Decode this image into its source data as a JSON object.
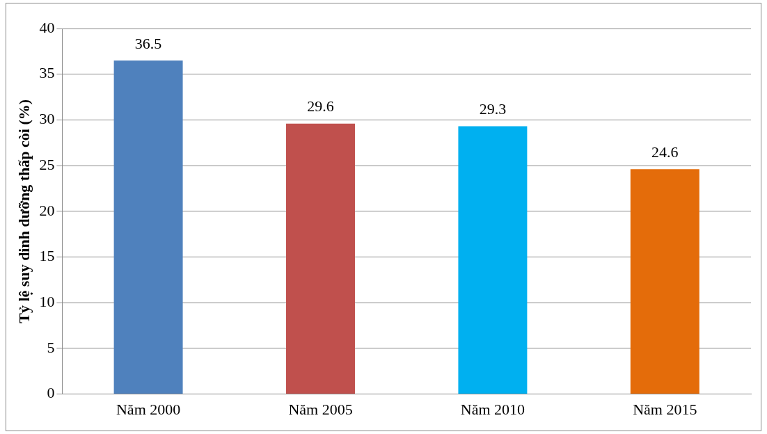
{
  "chart_data": {
    "type": "bar",
    "ylabel": "Tỷ lệ suy dinh dưỡng thấp còi (%)",
    "categories": [
      "Năm 2000",
      "Năm 2005",
      "Năm 2010",
      "Năm 2015"
    ],
    "values": [
      36.5,
      29.6,
      29.3,
      24.6
    ],
    "colors": [
      "#4f81bd",
      "#c0504d",
      "#00b0f0",
      "#e46c0a"
    ],
    "ylim": [
      0,
      40
    ],
    "yticks": [
      0,
      5,
      10,
      15,
      20,
      25,
      30,
      35,
      40
    ],
    "grid": "y",
    "data_labels": true,
    "legend": false
  }
}
